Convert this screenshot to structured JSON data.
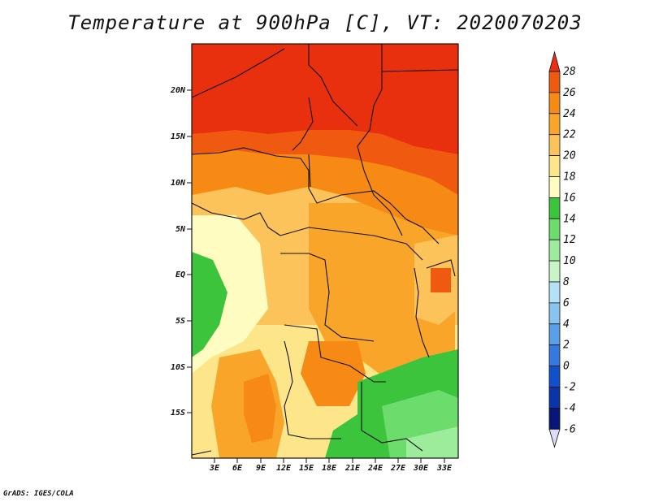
{
  "title": "Temperature at 900hPa [C], VT: 2020070203",
  "footer": "GrADS: IGES/COLA",
  "map": {
    "lat_labels": [
      "20N",
      "15N",
      "10N",
      "5N",
      "EQ",
      "5S",
      "10S",
      "15S"
    ],
    "lon_labels": [
      "3E",
      "6E",
      "9E",
      "12E",
      "15E",
      "18E",
      "21E",
      "24E",
      "27E",
      "30E",
      "33E"
    ]
  },
  "colorbar": {
    "levels": [
      "28",
      "26",
      "24",
      "22",
      "20",
      "18",
      "16",
      "14",
      "12",
      "10",
      "8",
      "6",
      "4",
      "2",
      "0",
      "-2",
      "-4",
      "-6"
    ],
    "colors": [
      "#e8300f",
      "#f05a10",
      "#f78a14",
      "#f9a52a",
      "#fbc35a",
      "#fde58a",
      "#fefcc0",
      "#3cc43c",
      "#6cdc6c",
      "#9cec9c",
      "#c8f4c8",
      "#b4e0f8",
      "#88c4f0",
      "#5aa0e8",
      "#3478e0",
      "#1050cc",
      "#0a34aa",
      "#08167a",
      "#dcdcf8"
    ]
  }
}
